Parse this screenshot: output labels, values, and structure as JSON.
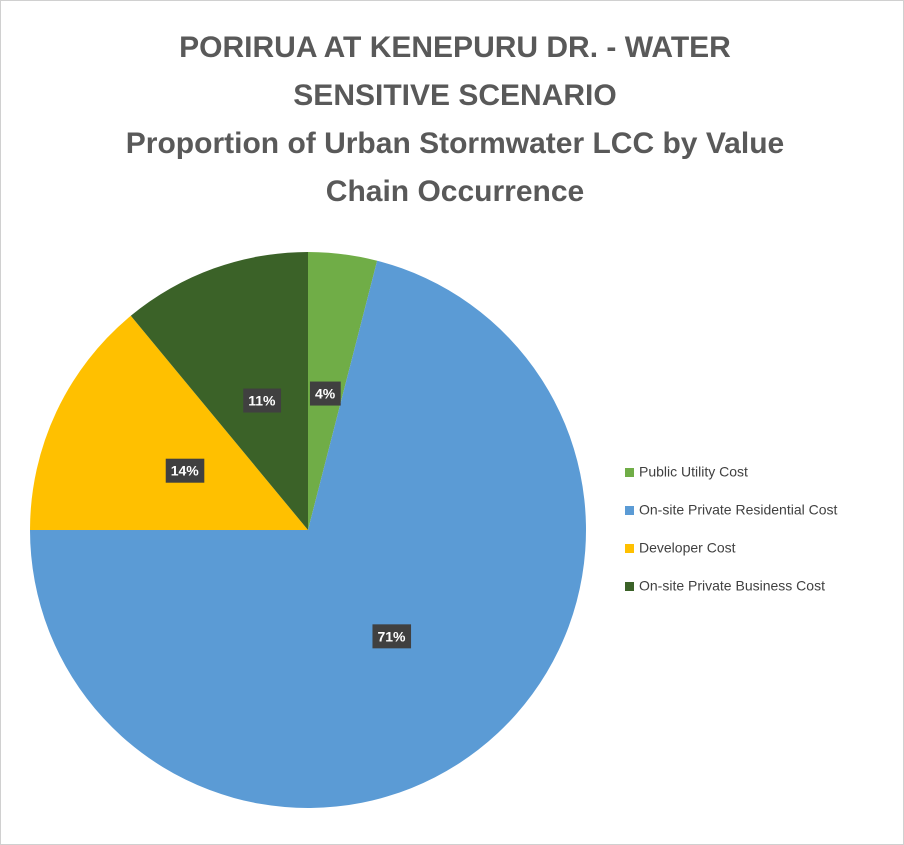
{
  "chart_data": {
    "type": "pie",
    "title": "PORIRUA AT KENEPURU DR. - WATER SENSITIVE SCENARIO",
    "subtitle": "Proportion of Urban Stormwater LCC by Value Chain Occurrence",
    "categories": [
      "Public Utility Cost",
      "On-site Private Residential Cost",
      "Developer Cost",
      "On-site Private Business Cost"
    ],
    "values": [
      4,
      71,
      14,
      11
    ],
    "value_labels": [
      "4%",
      "71%",
      "14%",
      "11%"
    ],
    "colors": [
      "#70ad47",
      "#5b9bd5",
      "#ffc000",
      "#3b6228"
    ],
    "legend": "right"
  }
}
